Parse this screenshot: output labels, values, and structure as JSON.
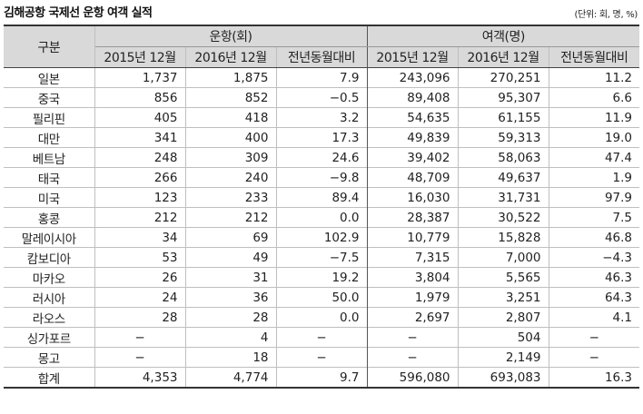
{
  "title": "김해공항 국제선 운항 여객 실적",
  "unit_note": "(단위: 회, 명, %)",
  "headers": {
    "category": "구분",
    "flights_group": "운항(회)",
    "passengers_group": "여객(명)",
    "col_2015": "2015년 12월",
    "col_2016": "2016년 12월",
    "col_yoy": "전년동월대비"
  },
  "rows": [
    {
      "name": "일본",
      "f15": "1,737",
      "f16": "1,875",
      "fyoy": "7.9",
      "p15": "243,096",
      "p16": "270,251",
      "pyoy": "11.2"
    },
    {
      "name": "중국",
      "f15": "856",
      "f16": "852",
      "fyoy": "−0.5",
      "p15": "89,408",
      "p16": "95,307",
      "pyoy": "6.6"
    },
    {
      "name": "필리핀",
      "f15": "405",
      "f16": "418",
      "fyoy": "3.2",
      "p15": "54,635",
      "p16": "61,155",
      "pyoy": "11.9"
    },
    {
      "name": "대만",
      "f15": "341",
      "f16": "400",
      "fyoy": "17.3",
      "p15": "49,839",
      "p16": "59,313",
      "pyoy": "19.0"
    },
    {
      "name": "베트남",
      "f15": "248",
      "f16": "309",
      "fyoy": "24.6",
      "p15": "39,402",
      "p16": "58,063",
      "pyoy": "47.4"
    },
    {
      "name": "태국",
      "f15": "266",
      "f16": "240",
      "fyoy": "−9.8",
      "p15": "48,709",
      "p16": "49,637",
      "pyoy": "1.9"
    },
    {
      "name": "미국",
      "f15": "123",
      "f16": "233",
      "fyoy": "89.4",
      "p15": "16,030",
      "p16": "31,731",
      "pyoy": "97.9"
    },
    {
      "name": "홍콩",
      "f15": "212",
      "f16": "212",
      "fyoy": "0.0",
      "p15": "28,387",
      "p16": "30,522",
      "pyoy": "7.5"
    },
    {
      "name": "말레이시아",
      "f15": "34",
      "f16": "69",
      "fyoy": "102.9",
      "p15": "10,779",
      "p16": "15,828",
      "pyoy": "46.8"
    },
    {
      "name": "캄보디아",
      "f15": "53",
      "f16": "49",
      "fyoy": "−7.5",
      "p15": "7,315",
      "p16": "7,000",
      "pyoy": "−4.3"
    },
    {
      "name": "마카오",
      "f15": "26",
      "f16": "31",
      "fyoy": "19.2",
      "p15": "3,804",
      "p16": "5,565",
      "pyoy": "46.3"
    },
    {
      "name": "러시아",
      "f15": "24",
      "f16": "36",
      "fyoy": "50.0",
      "p15": "1,979",
      "p16": "3,251",
      "pyoy": "64.3"
    },
    {
      "name": "라오스",
      "f15": "28",
      "f16": "28",
      "fyoy": "0.0",
      "p15": "2,697",
      "p16": "2,807",
      "pyoy": "4.1"
    },
    {
      "name": "싱가포르",
      "f15": "−",
      "f16": "4",
      "fyoy": "−",
      "p15": "−",
      "p16": "504",
      "pyoy": "−"
    },
    {
      "name": "몽고",
      "f15": "−",
      "f16": "18",
      "fyoy": "−",
      "p15": "−",
      "p16": "2,149",
      "pyoy": "−"
    }
  ],
  "total": {
    "name": "합계",
    "f15": "4,353",
    "f16": "4,774",
    "fyoy": "9.7",
    "p15": "596,080",
    "p16": "693,083",
    "pyoy": "16.3"
  }
}
